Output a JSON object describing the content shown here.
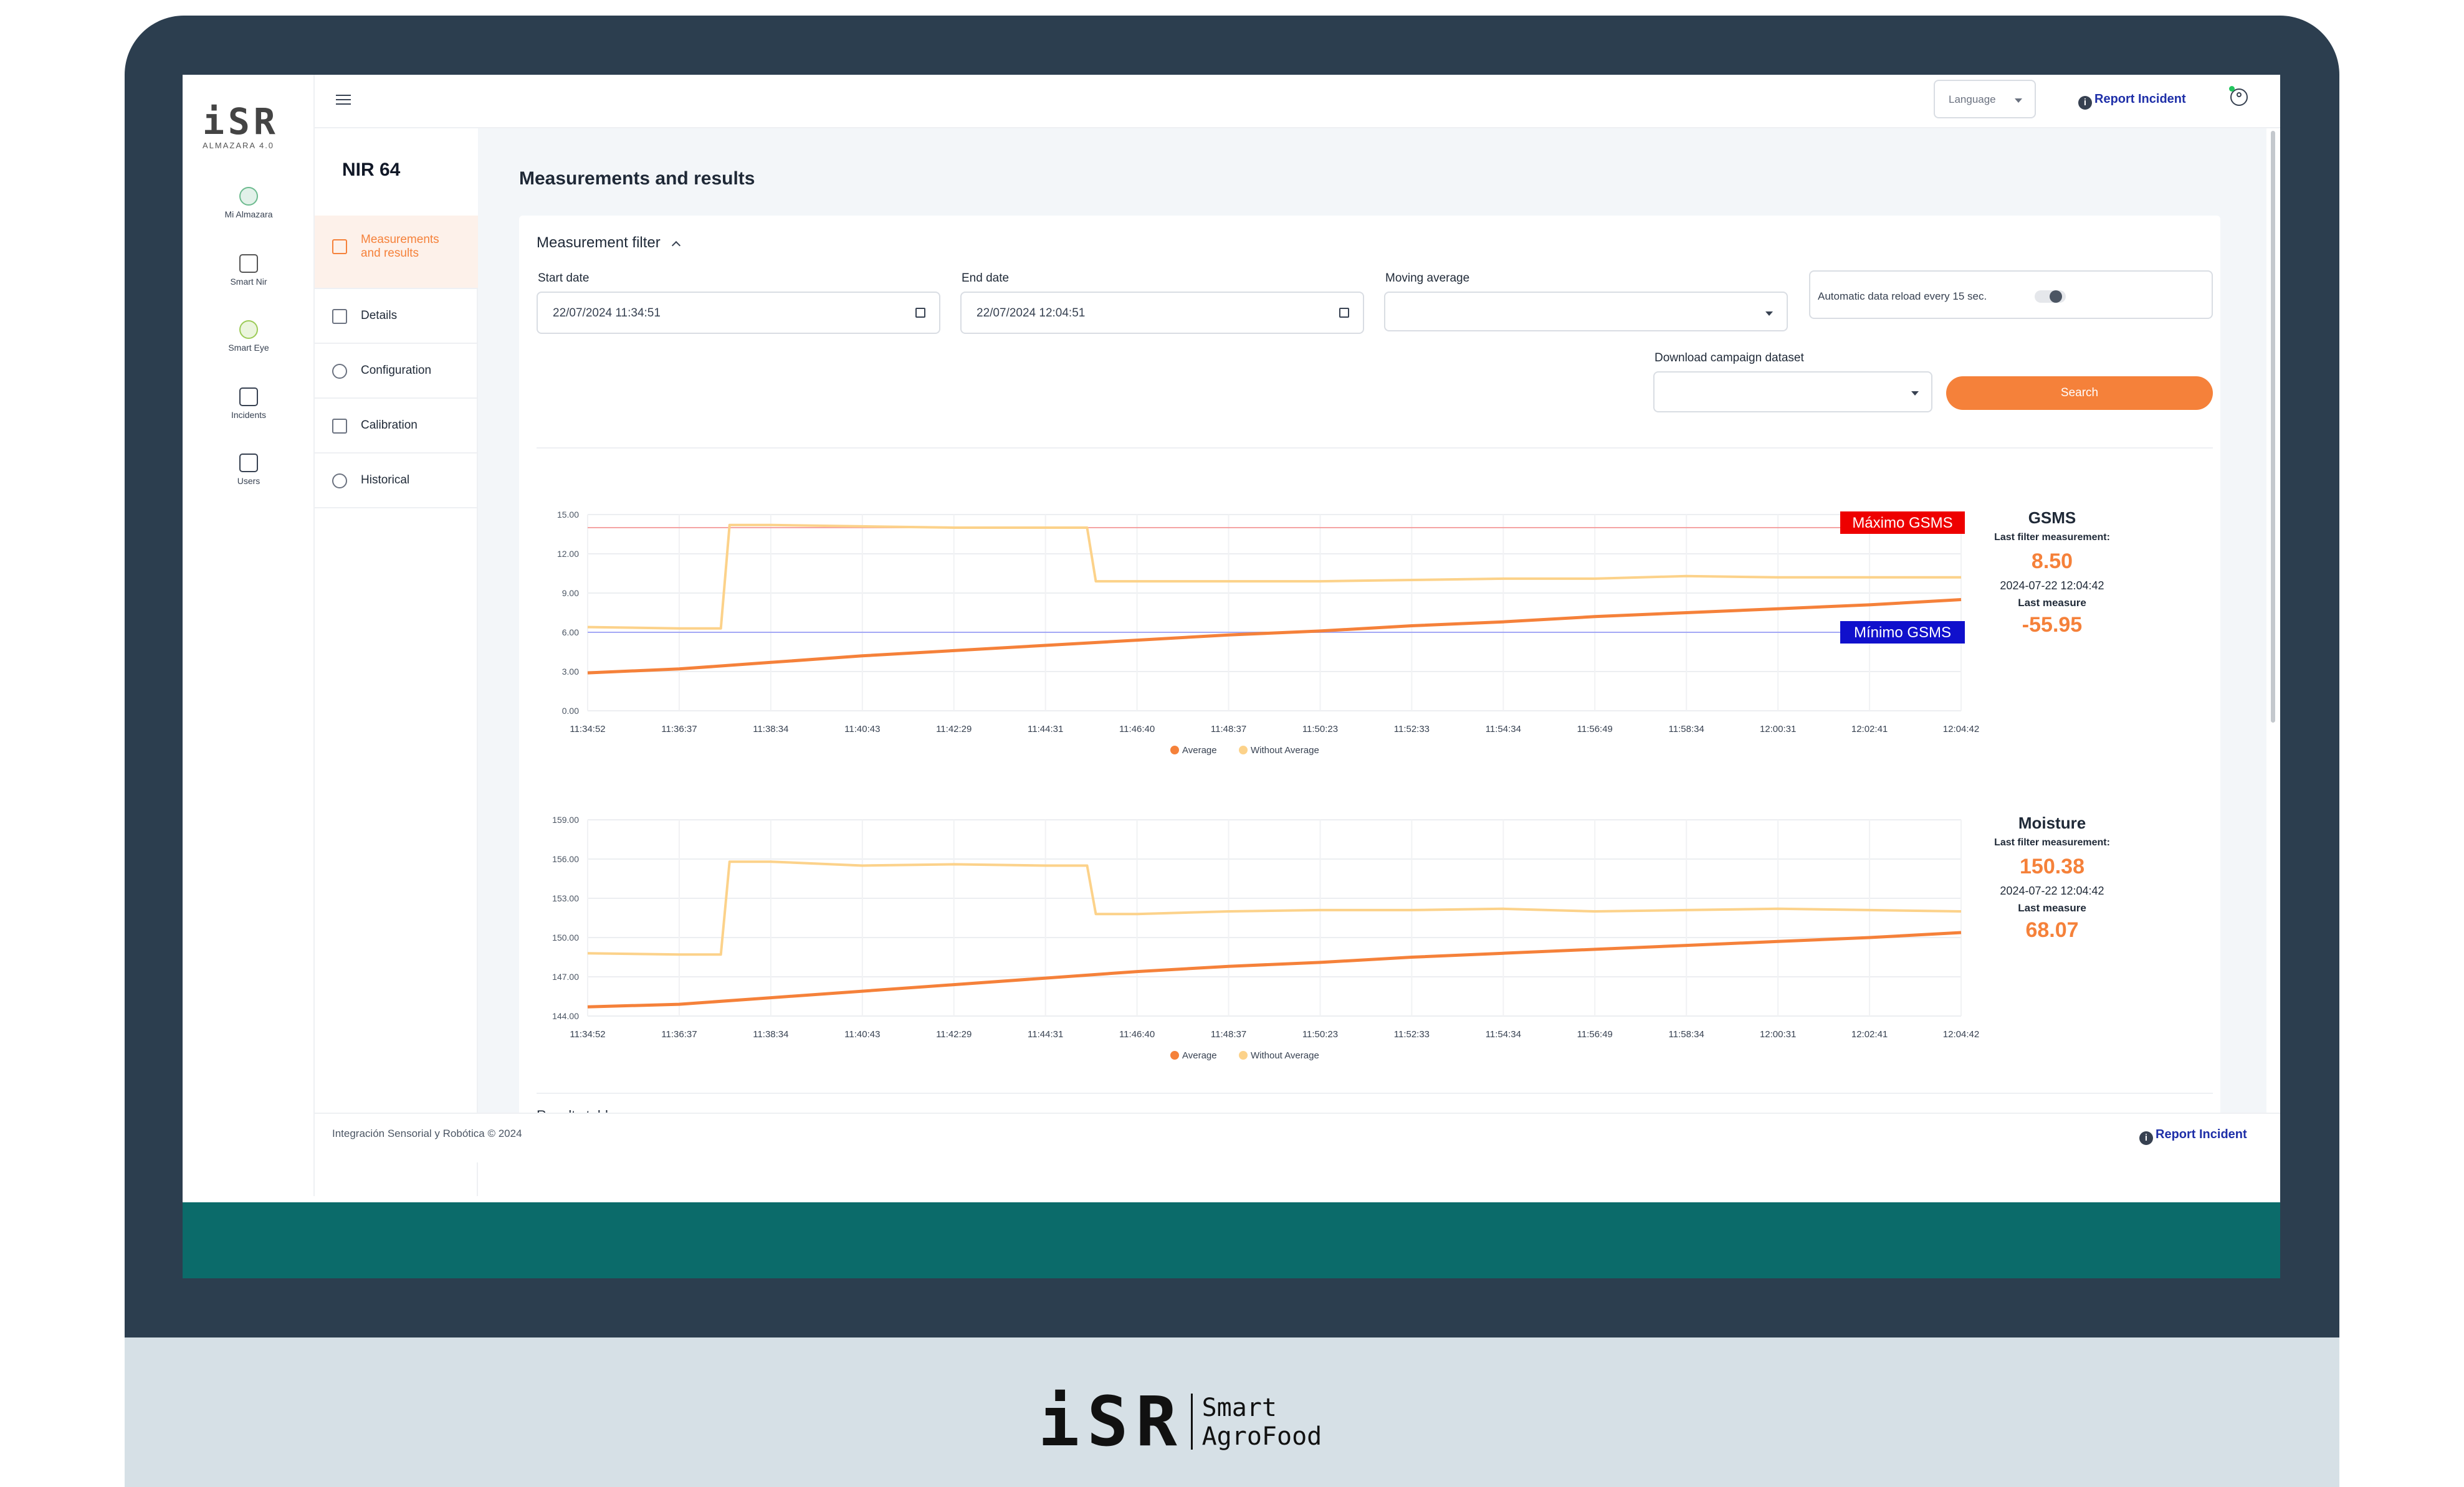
{
  "app": {
    "logo_text": "iSR",
    "logo_subtitle": "ALMAZARA 4.0",
    "device_title": "NIR 64",
    "page_title": "Measurements and results",
    "bottom_logo_text": "iSR",
    "bottom_logo_line1": "Smart",
    "bottom_logo_line2": "AgroFood"
  },
  "rail": [
    {
      "label": "Mi Almazara",
      "icon": "olive-icon"
    },
    {
      "label": "Smart Nir",
      "icon": "device-icon"
    },
    {
      "label": "Smart Eye",
      "icon": "olives-icon"
    },
    {
      "label": "Incidents",
      "icon": "mail-icon"
    },
    {
      "label": "Users",
      "icon": "users-icon"
    }
  ],
  "nav": [
    {
      "label_line1": "Measurements",
      "label_line2": "and results",
      "icon": "pulse-icon",
      "active": true
    },
    {
      "label_line1": "Details",
      "label_line2": "",
      "icon": "list-icon",
      "active": false
    },
    {
      "label_line1": "Configuration",
      "label_line2": "",
      "icon": "gear-icon",
      "active": false
    },
    {
      "label_line1": "Calibration",
      "label_line2": "",
      "icon": "sliders-icon",
      "active": false
    },
    {
      "label_line1": "Historical",
      "label_line2": "",
      "icon": "clock-icon",
      "active": false
    }
  ],
  "topbar": {
    "language_label": "Language",
    "report_incident": "Report Incident"
  },
  "filter": {
    "title": "Measurement filter",
    "start_label": "Start date",
    "start_value": "22/07/2024 11:34:51",
    "end_label": "End date",
    "end_value": "22/07/2024 12:04:51",
    "moving_avg_label": "Moving average",
    "moving_avg_value": "",
    "auto_reload_label": "Automatic data reload every 15 sec.",
    "download_label": "Download campaign dataset",
    "download_value": "",
    "search_label": "Search"
  },
  "colors": {
    "accent": "#f5813a",
    "average_line": "#f5813a",
    "without_average_line": "#fcd28a",
    "max_band": "#ee0000",
    "min_band": "#1010cc",
    "teal": "#0b6b6a",
    "frame": "#2c3e4f",
    "link": "#1e2fa8"
  },
  "results_table_label": "Results table",
  "footer": {
    "copyright": "Integración Sensorial y Robótica © 2024",
    "report_incident": "Report Incident"
  },
  "panels": [
    {
      "name": "GSMS",
      "last_filter_label": "Last filter measurement:",
      "last_filter_value": "8.50",
      "timestamp": "2024-07-22 12:04:42",
      "last_measure_label": "Last measure",
      "last_measure_value": "-55.95"
    },
    {
      "name": "Moisture",
      "last_filter_label": "Last filter measurement:",
      "last_filter_value": "150.38",
      "timestamp": "2024-07-22 12:04:42",
      "last_measure_label": "Last measure",
      "last_measure_value": "68.07"
    }
  ],
  "chart_data": [
    {
      "type": "line",
      "title": "",
      "x": [
        "11:34:52",
        "11:36:37",
        "11:38:34",
        "11:40:43",
        "11:42:29",
        "11:44:31",
        "11:46:40",
        "11:48:37",
        "11:50:23",
        "11:52:33",
        "11:54:34",
        "11:56:49",
        "11:58:34",
        "12:00:31",
        "12:02:41",
        "12:04:42"
      ],
      "y_ticks": [
        "0.00",
        "3.00",
        "6.00",
        "9.00",
        "12.00",
        "15.00"
      ],
      "ylim": [
        0,
        15
      ],
      "series": [
        {
          "name": "Average",
          "values": [
            2.9,
            3.2,
            3.7,
            4.2,
            4.6,
            5.0,
            5.4,
            5.8,
            6.1,
            6.5,
            6.8,
            7.2,
            7.5,
            7.8,
            8.1,
            8.5
          ]
        },
        {
          "name": "Without Average",
          "values": [
            6.4,
            6.3,
            14.2,
            14.1,
            14.0,
            14.0,
            9.9,
            9.9,
            9.9,
            10.0,
            10.1,
            10.1,
            10.3,
            10.2,
            10.2,
            10.2
          ]
        }
      ],
      "thresholds": [
        {
          "label": "Máximo GSMS",
          "value": 14.0
        },
        {
          "label": "Mínimo GSMS",
          "value": 6.0
        }
      ],
      "legend": [
        "Average",
        "Without Average"
      ],
      "legend_position": "bottom",
      "grid": true
    },
    {
      "type": "line",
      "title": "",
      "x": [
        "11:34:52",
        "11:36:37",
        "11:38:34",
        "11:40:43",
        "11:42:29",
        "11:44:31",
        "11:46:40",
        "11:48:37",
        "11:50:23",
        "11:52:33",
        "11:54:34",
        "11:56:49",
        "11:58:34",
        "12:00:31",
        "12:02:41",
        "12:04:42"
      ],
      "y_ticks": [
        "144.00",
        "147.00",
        "150.00",
        "153.00",
        "156.00",
        "159.00"
      ],
      "ylim": [
        144,
        159
      ],
      "series": [
        {
          "name": "Average",
          "values": [
            144.7,
            144.9,
            145.4,
            145.9,
            146.4,
            146.9,
            147.4,
            147.8,
            148.1,
            148.5,
            148.8,
            149.1,
            149.4,
            149.7,
            150.0,
            150.38
          ]
        },
        {
          "name": "Without Average",
          "values": [
            148.8,
            148.7,
            155.8,
            155.5,
            155.6,
            155.5,
            151.8,
            152.0,
            152.1,
            152.1,
            152.2,
            152.0,
            152.1,
            152.2,
            152.1,
            152.0
          ]
        }
      ],
      "thresholds": [],
      "legend": [
        "Average",
        "Without Average"
      ],
      "legend_position": "bottom",
      "grid": true
    }
  ]
}
